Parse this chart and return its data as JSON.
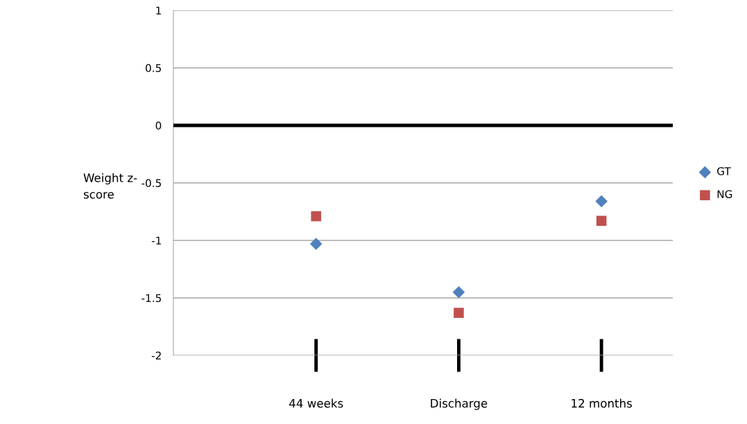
{
  "chart_data": {
    "type": "scatter",
    "ylabel": "Weight z-\nscore",
    "categories": [
      "44 weeks",
      "Discharge",
      "12 months"
    ],
    "series": [
      {
        "name": "GT",
        "color": "#4f81bd",
        "marker": "diamond",
        "values": [
          -1.03,
          -1.45,
          -0.66
        ]
      },
      {
        "name": "NG",
        "color": "#c0504d",
        "marker": "square",
        "values": [
          -0.79,
          -1.63,
          -0.83
        ]
      }
    ],
    "ylim": [
      -2,
      1
    ],
    "yticks": [
      -2,
      -1.5,
      -1,
      -0.5,
      0,
      0.5,
      1
    ],
    "ref_lines": [
      {
        "axis": "y",
        "value": 0,
        "color": "#000000"
      }
    ],
    "grid": "y",
    "legend": "right"
  }
}
